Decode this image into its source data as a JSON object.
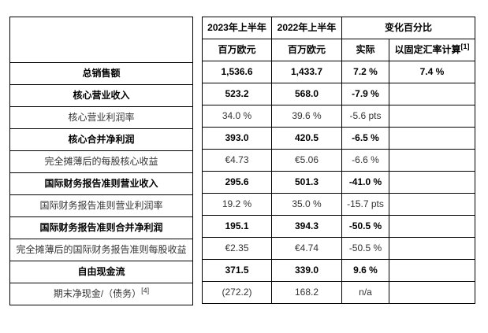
{
  "table": {
    "header": {
      "period_2023": "2023年上半年",
      "period_2022": "2022年上半年",
      "change_group": "变化百分比",
      "unit_2023": "百万欧元",
      "unit_2022": "百万欧元",
      "actual": "实际",
      "constant_currency": "以固定汇率计算",
      "constant_currency_note": "[1]"
    },
    "rows": [
      {
        "label": "总销售额",
        "h1_2023": "1,536.6",
        "h1_2022": "1,433.7",
        "actual": "7.2 %",
        "constant_currency": "7.4 %"
      },
      {
        "label": "核心营业收入",
        "h1_2023": "523.2",
        "h1_2022": "568.0",
        "actual": "-7.9 %",
        "constant_currency": ""
      },
      {
        "label": "核心营业利润率",
        "h1_2023": "34.0 %",
        "h1_2022": "39.6 %",
        "actual": "-5.6 pts",
        "constant_currency": ""
      },
      {
        "label": "核心合并净利润",
        "h1_2023": "393.0",
        "h1_2022": "420.5",
        "actual": "-6.5 %",
        "constant_currency": ""
      },
      {
        "label": "完全摊薄后的每股核心收益",
        "h1_2023": "€4.73",
        "h1_2022": "€5.06",
        "actual": "-6.6 %",
        "constant_currency": ""
      },
      {
        "label": "国际财务报告准则营业收入",
        "h1_2023": "295.6",
        "h1_2022": "501.3",
        "actual": "-41.0 %",
        "constant_currency": ""
      },
      {
        "label": "国际财务报告准则营业利润率",
        "h1_2023": "19.2 %",
        "h1_2022": "35.0 %",
        "actual": "-15.7 pts",
        "constant_currency": ""
      },
      {
        "label": "国际财务报告准则合并净利润",
        "h1_2023": "195.1",
        "h1_2022": "394.3",
        "actual": "-50.5 %",
        "constant_currency": ""
      },
      {
        "label": "完全摊薄后的国际财务报告准则每股收益",
        "h1_2023": "€2.35",
        "h1_2022": "€4.74",
        "actual": "-50.5 %",
        "constant_currency": ""
      },
      {
        "label": "自由现金流",
        "h1_2023": "371.5",
        "h1_2022": "339.0",
        "actual": "9.6 %",
        "constant_currency": ""
      },
      {
        "label": "期末净现金/（债务）",
        "label_note": "[4]",
        "h1_2023": "(272.2)",
        "h1_2022": "168.2",
        "actual": "n/a",
        "constant_currency": ""
      }
    ]
  }
}
